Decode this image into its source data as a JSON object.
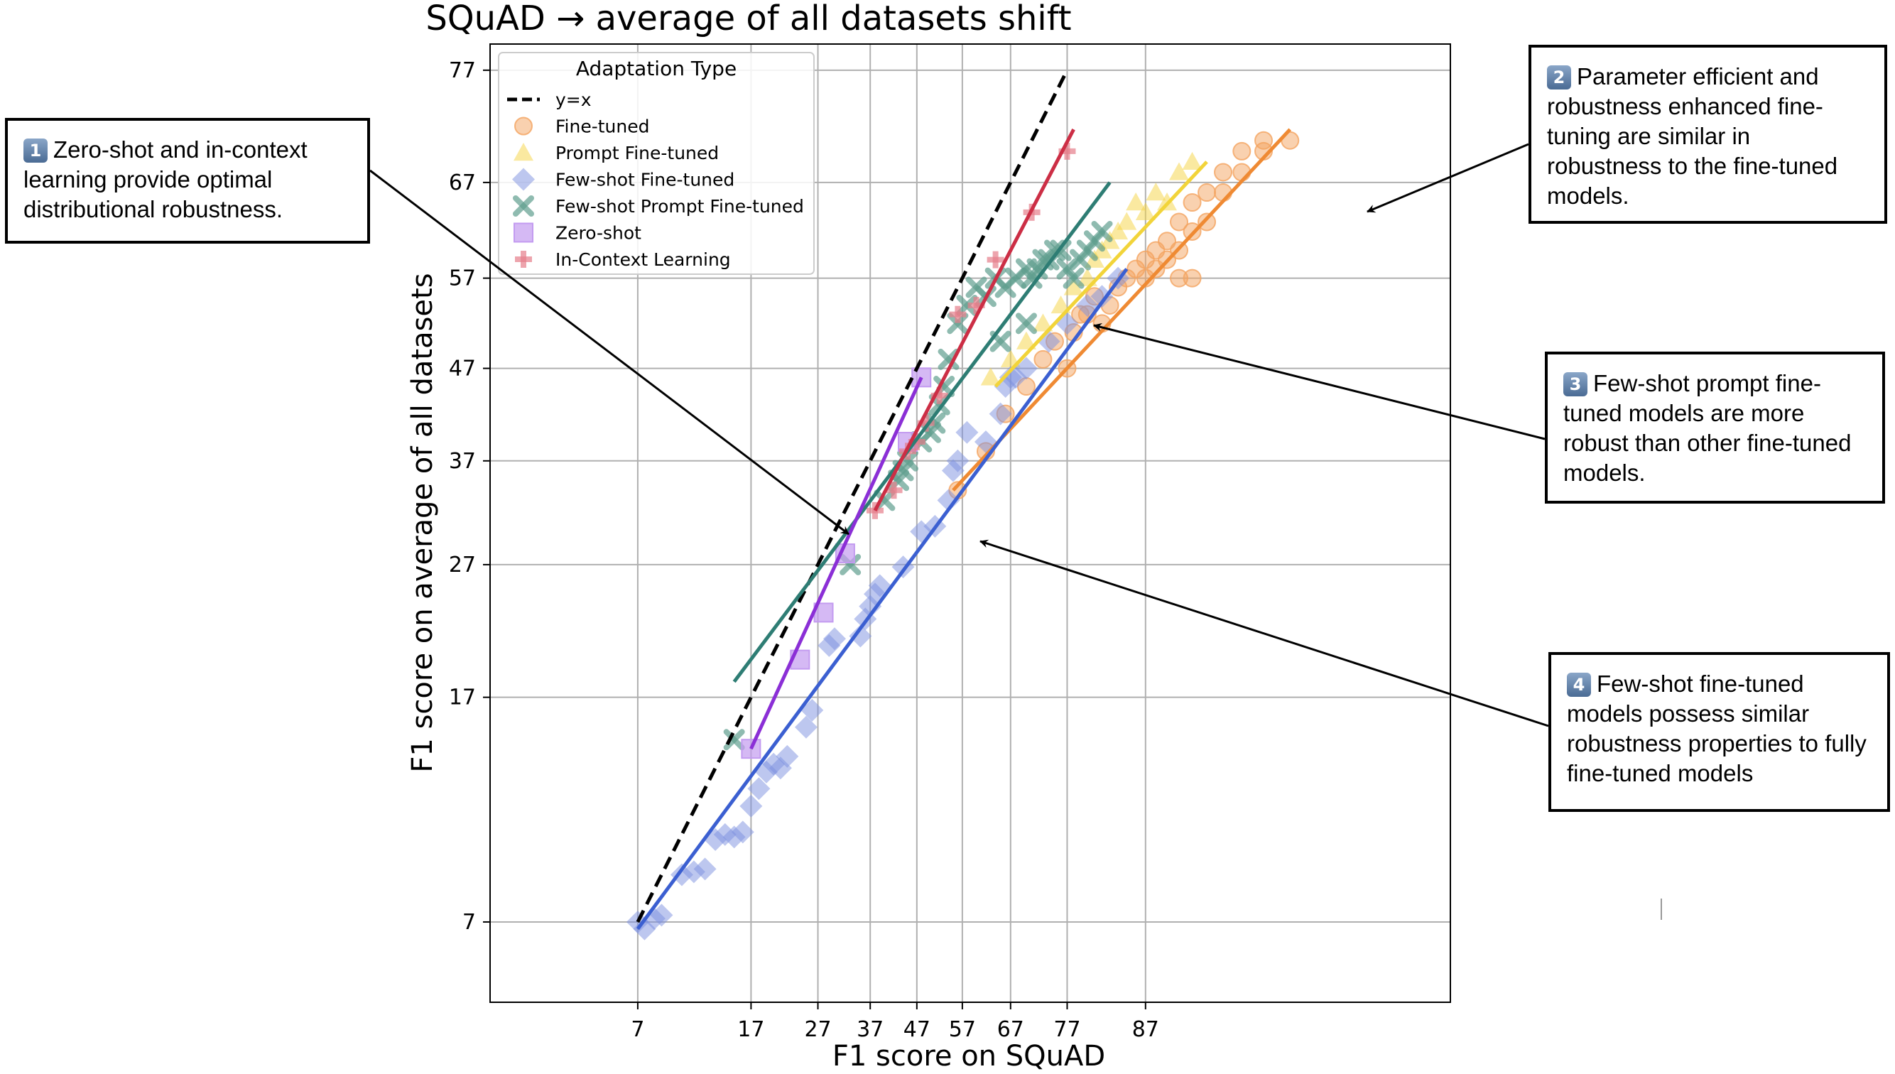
{
  "chart_data": {
    "type": "scatter",
    "title": "SQuAD → average of all datasets shift",
    "xlabel": "F1 score on SQuAD",
    "ylabel": "F1 score on average of all datasets",
    "xticks": [
      7,
      17,
      27,
      37,
      47,
      57,
      67,
      77,
      87
    ],
    "yticks": [
      7,
      17,
      27,
      37,
      47,
      57,
      67,
      77
    ],
    "xlim": [
      2,
      99
    ],
    "ylim": [
      5,
      79
    ],
    "scale": "logit",
    "grid": true,
    "legend": {
      "title": "Adaptation Type",
      "position": "top-left",
      "entries": [
        "y=x",
        "Fine-tuned",
        "Prompt Fine-tuned",
        "Few-shot Fine-tuned",
        "Few-shot Prompt Fine-tuned",
        "Zero-shot",
        "In-Context Learning"
      ]
    },
    "series": [
      {
        "name": "Fine-tuned",
        "marker": "circle",
        "color": "#f4a460",
        "points": [
          [
            56,
            34
          ],
          [
            62,
            38
          ],
          [
            66,
            42
          ],
          [
            70,
            45
          ],
          [
            73,
            48
          ],
          [
            75,
            50
          ],
          [
            77,
            47
          ],
          [
            78,
            51
          ],
          [
            79,
            53
          ],
          [
            80,
            53
          ],
          [
            81,
            55
          ],
          [
            82,
            52
          ],
          [
            83,
            54
          ],
          [
            84,
            56
          ],
          [
            85,
            57
          ],
          [
            86,
            58
          ],
          [
            87,
            59
          ],
          [
            87,
            57
          ],
          [
            88,
            60
          ],
          [
            88,
            58
          ],
          [
            89,
            61
          ],
          [
            89,
            59
          ],
          [
            90,
            60
          ],
          [
            90,
            63
          ],
          [
            91,
            62
          ],
          [
            91,
            65
          ],
          [
            92,
            66
          ],
          [
            92,
            63
          ],
          [
            93,
            66
          ],
          [
            93,
            68
          ],
          [
            94,
            68
          ],
          [
            94,
            70
          ],
          [
            95,
            70
          ],
          [
            95,
            71
          ],
          [
            96,
            71
          ],
          [
            91,
            57
          ],
          [
            90,
            57
          ]
        ],
        "trend": [
          [
            55,
            34
          ],
          [
            96,
            72
          ]
        ]
      },
      {
        "name": "Prompt Fine-tuned",
        "marker": "triangle",
        "color": "#f5d442",
        "points": [
          [
            63,
            46
          ],
          [
            67,
            48
          ],
          [
            70,
            50
          ],
          [
            73,
            52
          ],
          [
            76,
            54
          ],
          [
            78,
            56
          ],
          [
            80,
            57
          ],
          [
            81,
            59
          ],
          [
            82,
            60
          ],
          [
            83,
            61
          ],
          [
            84,
            62
          ],
          [
            85,
            63
          ],
          [
            86,
            65
          ],
          [
            87,
            64
          ],
          [
            88,
            66
          ],
          [
            89,
            65
          ],
          [
            90,
            68
          ],
          [
            91,
            69
          ]
        ],
        "trend": [
          [
            64,
            45
          ],
          [
            92,
            69
          ]
        ]
      },
      {
        "name": "Few-shot Fine-tuned",
        "marker": "diamond",
        "color": "#7b8fe0",
        "points": [
          [
            7,
            7
          ],
          [
            7.4,
            6.8
          ],
          [
            8,
            7.1
          ],
          [
            8.5,
            7.2
          ],
          [
            10,
            8.5
          ],
          [
            11,
            8.6
          ],
          [
            12,
            8.7
          ],
          [
            13,
            9.8
          ],
          [
            14,
            10
          ],
          [
            15,
            9.9
          ],
          [
            16,
            10.1
          ],
          [
            17,
            11.2
          ],
          [
            18,
            12
          ],
          [
            19,
            12.8
          ],
          [
            20,
            13.2
          ],
          [
            21,
            13
          ],
          [
            22,
            13.6
          ],
          [
            25,
            15.2
          ],
          [
            26,
            16.2
          ],
          [
            29,
            20.5
          ],
          [
            30,
            21
          ],
          [
            35,
            21.2
          ],
          [
            36,
            22.5
          ],
          [
            37,
            23.5
          ],
          [
            38,
            24.5
          ],
          [
            39,
            25.2
          ],
          [
            44,
            26.8
          ],
          [
            48,
            30
          ],
          [
            51,
            30.5
          ],
          [
            54,
            33
          ],
          [
            55,
            36
          ],
          [
            56,
            37
          ],
          [
            58,
            40
          ],
          [
            62,
            39
          ],
          [
            65,
            42
          ],
          [
            66,
            45
          ],
          [
            67,
            46
          ],
          [
            68,
            46
          ],
          [
            70,
            47
          ],
          [
            74,
            50
          ],
          [
            77,
            52
          ],
          [
            80,
            54
          ],
          [
            82,
            55
          ],
          [
            84,
            57
          ]
        ],
        "trend": [
          [
            7,
            6.8
          ],
          [
            85,
            58
          ]
        ]
      },
      {
        "name": "Few-shot Prompt Fine-tuned",
        "marker": "x",
        "color": "#5f9e8f",
        "points": [
          [
            15,
            14.5
          ],
          [
            33,
            27
          ],
          [
            40,
            33
          ],
          [
            43,
            35
          ],
          [
            44,
            36
          ],
          [
            45,
            37
          ],
          [
            48,
            39
          ],
          [
            50,
            40
          ],
          [
            51,
            41
          ],
          [
            52,
            43
          ],
          [
            53,
            45
          ],
          [
            54,
            48
          ],
          [
            56,
            52
          ],
          [
            58,
            54
          ],
          [
            60,
            56
          ],
          [
            62,
            55
          ],
          [
            64,
            57
          ],
          [
            66,
            56
          ],
          [
            68,
            57
          ],
          [
            70,
            58
          ],
          [
            71,
            57
          ],
          [
            72,
            58
          ],
          [
            73,
            59
          ],
          [
            74,
            59
          ],
          [
            75,
            60
          ],
          [
            76,
            60
          ],
          [
            77,
            58
          ],
          [
            78,
            57
          ],
          [
            79,
            59
          ],
          [
            80,
            60
          ],
          [
            81,
            61
          ],
          [
            82,
            62
          ],
          [
            70,
            52
          ],
          [
            65,
            50
          ]
        ],
        "trend": [
          [
            15,
            18
          ],
          [
            83,
            67
          ]
        ]
      },
      {
        "name": "Zero-shot",
        "marker": "square",
        "color": "#c39bf0",
        "points": [
          [
            17,
            14
          ],
          [
            24,
            19.5
          ],
          [
            28,
            23
          ],
          [
            32,
            28
          ],
          [
            45,
            39
          ],
          [
            48,
            46
          ]
        ],
        "trend": [
          [
            17,
            14
          ],
          [
            48,
            46
          ]
        ]
      },
      {
        "name": "In-Context Learning",
        "marker": "plus",
        "color": "#e57e8a",
        "points": [
          [
            38,
            32
          ],
          [
            42,
            34
          ],
          [
            45,
            38
          ],
          [
            47,
            39
          ],
          [
            49,
            41
          ],
          [
            52,
            44
          ],
          [
            56,
            53
          ],
          [
            60,
            54
          ],
          [
            64,
            59
          ],
          [
            71,
            64
          ],
          [
            77,
            70
          ]
        ],
        "trend": [
          [
            38,
            32
          ],
          [
            78,
            72
          ]
        ]
      }
    ],
    "trend_colors": {
      "Fine-tuned": "#ef8a33",
      "Prompt Fine-tuned": "#f2d43a",
      "Few-shot Fine-tuned": "#3b5fd1",
      "Few-shot Prompt Fine-tuned": "#2e7d74",
      "Zero-shot": "#8b2fd6",
      "In-Context Learning": "#cc2e45"
    }
  },
  "annotations": [
    {
      "num": "1",
      "text": "Zero-shot and in-context learning provide optimal distributional robustness."
    },
    {
      "num": "2",
      "text": "Parameter efficient and robustness enhanced fine-tuning are similar in robustness to the fine-tuned models."
    },
    {
      "num": "3",
      "text": "Few-shot prompt fine-tuned models are more robust than other fine-tuned models."
    },
    {
      "num": "4",
      "text": "Few-shot fine-tuned models possess similar robustness properties to fully fine-tuned models"
    }
  ]
}
